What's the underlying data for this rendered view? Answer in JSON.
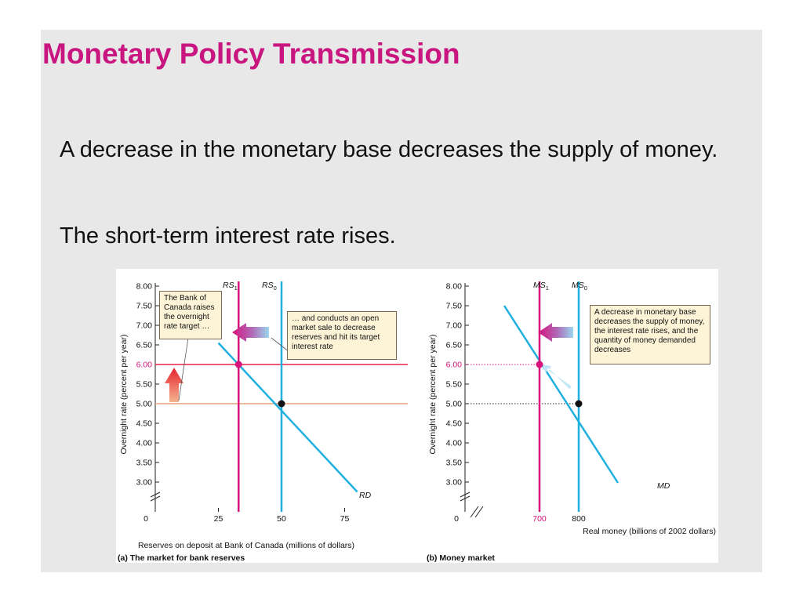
{
  "slide": {
    "title": "Monetary Policy Transmission",
    "bullets": [
      "A decrease in the monetary base decreases the supply of money.",
      "The short-term interest rate rises."
    ]
  },
  "colors": {
    "title": "#c8157f",
    "magenta": "#d6147c",
    "cyan": "#1fb0e0",
    "red_line": "#e8234a",
    "orange_line": "#e8a07a",
    "callout_bg": "#fdf3d7"
  },
  "chart_data": [
    {
      "type": "line",
      "caption": "(a) The market for bank reserves",
      "xlabel": "Reserves on deposit at Bank of Canada (millions of dollars)",
      "ylabel": "Overnight rate (percent per year)",
      "xlim": [
        0,
        100
      ],
      "ylim": [
        3.0,
        8.0
      ],
      "x_ticks": [
        "0",
        "25",
        "50",
        "75"
      ],
      "x_tick_values": [
        0,
        25,
        50,
        75
      ],
      "y_ticks": [
        "8.00",
        "7.50",
        "7.00",
        "6.50",
        "6.00",
        "5.50",
        "5.00",
        "4.50",
        "4.00",
        "3.50",
        "3.00"
      ],
      "y_tick_values": [
        8.0,
        7.5,
        7.0,
        6.5,
        6.0,
        5.5,
        5.0,
        4.5,
        4.0,
        3.5,
        3.0
      ],
      "highlight_tick": "6.00",
      "axis_break": true,
      "series": [
        {
          "name": "RD",
          "kind": "demand",
          "points": [
            [
              25,
              6.55
            ],
            [
              80,
              2.75
            ]
          ]
        },
        {
          "name": "RS0",
          "kind": "vertical",
          "x": 50
        },
        {
          "name": "RS1",
          "kind": "vertical",
          "x": 33
        }
      ],
      "curve_labels": [
        {
          "base": "RS",
          "sub": "1"
        },
        {
          "base": "RS",
          "sub": "0"
        },
        {
          "base": "RD",
          "sub": ""
        }
      ],
      "reference_lines": [
        {
          "kind": "target",
          "y": 6.0
        },
        {
          "kind": "target",
          "y": 5.0
        }
      ],
      "equilibria": [
        {
          "x": 50,
          "y": 5.0,
          "style": "black"
        },
        {
          "x": 33,
          "y": 6.0,
          "style": "magenta"
        }
      ],
      "annotations": [
        "The Bank of Canada raises the overnight rate target …",
        "… and conducts an open market sale to decrease reserves and hit its target interest rate"
      ]
    },
    {
      "type": "line",
      "caption": "(b) Money market",
      "xlabel": "Real money (billions of 2002 dollars)",
      "ylabel": "Overnight rate (percent per year)",
      "ylim": [
        3.0,
        8.0
      ],
      "x_ticks": [
        "0",
        "700",
        "800"
      ],
      "x_tick_values": [
        0,
        700,
        800
      ],
      "y_ticks": [
        "8.00",
        "7.50",
        "7.00",
        "6.50",
        "6.00",
        "5.50",
        "5.00",
        "4.50",
        "4.00",
        "3.50",
        "3.00"
      ],
      "y_tick_values": [
        8.0,
        7.5,
        7.0,
        6.5,
        6.0,
        5.5,
        5.0,
        4.5,
        4.0,
        3.5,
        3.0
      ],
      "highlight_tick": "6.00",
      "highlight_x_tick": "700",
      "axis_break": true,
      "series": [
        {
          "name": "MD",
          "kind": "demand",
          "points": [
            [
              610,
              7.5
            ],
            [
              900,
              2.98
            ]
          ]
        },
        {
          "name": "MS0",
          "kind": "vertical",
          "x": 800
        },
        {
          "name": "MS1",
          "kind": "vertical",
          "x": 700
        }
      ],
      "curve_labels": [
        {
          "base": "MS",
          "sub": "1"
        },
        {
          "base": "MS",
          "sub": "0"
        },
        {
          "base": "MD",
          "sub": ""
        }
      ],
      "equilibria": [
        {
          "x": 800,
          "y": 5.0,
          "style": "black"
        },
        {
          "x": 700,
          "y": 6.0,
          "style": "magenta"
        }
      ],
      "annotations": [
        "A decrease in monetary base decreases the supply of money, the interest rate rises, and the quantity of money demanded decreases"
      ]
    }
  ]
}
